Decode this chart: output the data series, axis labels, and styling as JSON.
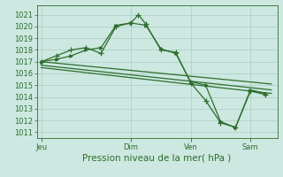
{
  "xlabel": "Pression niveau de la mer( hPa )",
  "background_color": "#cce8e0",
  "grid_color": "#aaccC4",
  "line_color": "#2d6e2d",
  "ylim_min": 1010.5,
  "ylim_max": 1021.8,
  "yticks": [
    1011,
    1012,
    1013,
    1014,
    1015,
    1016,
    1017,
    1018,
    1019,
    1020,
    1021
  ],
  "x_tick_labels": [
    "Jeu",
    "Dim",
    "Ven",
    "Sam"
  ],
  "x_tick_positions": [
    0.0,
    3.0,
    5.0,
    7.0
  ],
  "xlim_min": -0.15,
  "xlim_max": 7.9,
  "series1_x": [
    0.0,
    0.5,
    1.0,
    1.5,
    2.0,
    2.5,
    3.0,
    3.25,
    3.5,
    4.0,
    4.5,
    5.0,
    5.5,
    6.0,
    6.5,
    7.0,
    7.5
  ],
  "series1_y": [
    1017.0,
    1017.5,
    1018.0,
    1018.2,
    1017.7,
    1020.0,
    1020.3,
    1021.0,
    1020.2,
    1018.0,
    1017.8,
    1015.2,
    1013.7,
    1011.8,
    1011.4,
    1014.5,
    1014.2
  ],
  "series2_x": [
    0.0,
    0.5,
    1.0,
    1.5,
    2.0,
    2.5,
    3.0,
    3.5,
    4.0,
    4.5,
    5.0,
    5.5,
    6.0,
    6.5,
    7.0,
    7.5
  ],
  "series2_y": [
    1017.0,
    1017.2,
    1017.5,
    1018.0,
    1018.2,
    1020.1,
    1020.3,
    1020.1,
    1018.1,
    1017.7,
    1015.3,
    1015.0,
    1011.9,
    1011.4,
    1014.6,
    1014.3
  ],
  "series3_x": [
    0.0,
    7.7
  ],
  "series3_y": [
    1017.0,
    1015.1
  ],
  "series4_x": [
    0.0,
    7.7
  ],
  "series4_y": [
    1016.7,
    1014.6
  ],
  "series5_x": [
    0.0,
    7.7
  ],
  "series5_y": [
    1016.5,
    1014.3
  ],
  "ylabel_fontsize": 6.5,
  "xlabel_fontsize": 7.5,
  "tick_labelsize": 6.0,
  "linewidth": 0.9,
  "marker_size": 3.0
}
